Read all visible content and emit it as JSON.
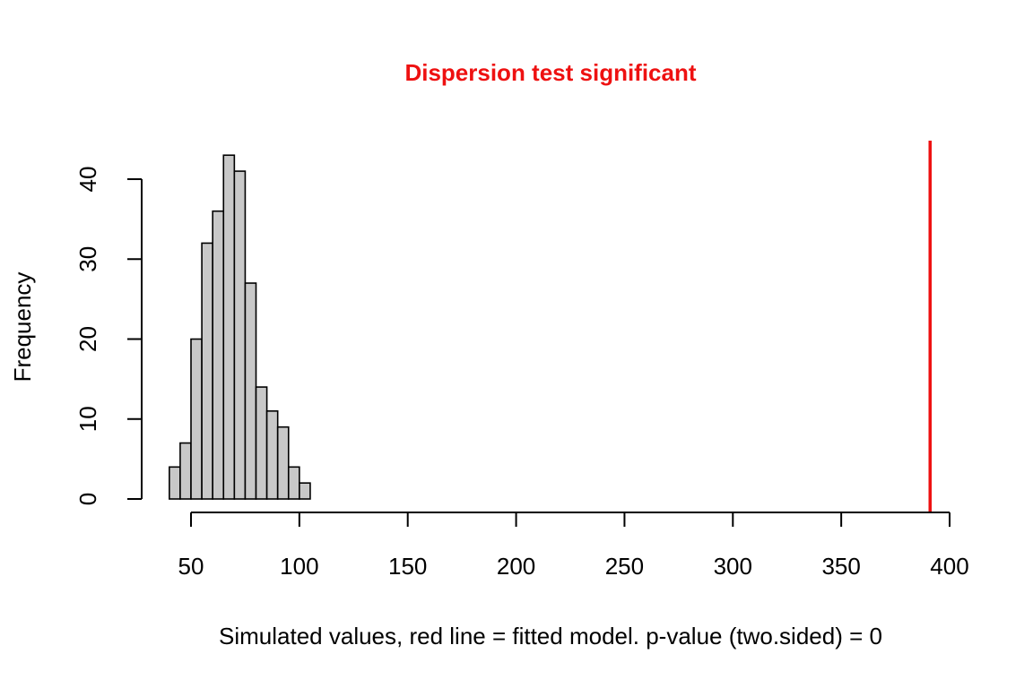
{
  "chart_data": {
    "type": "bar",
    "title": "Dispersion test significant",
    "xlabel": "Simulated values, red line = fitted model. p-value (two.sided) = 0",
    "ylabel": "Frequency",
    "xlim": [
      40,
      400
    ],
    "ylim": [
      0,
      43
    ],
    "grid": false,
    "bin_width": 5,
    "bins": [
      {
        "x0": 40,
        "x1": 45,
        "count": 4
      },
      {
        "x0": 45,
        "x1": 50,
        "count": 7
      },
      {
        "x0": 50,
        "x1": 55,
        "count": 20
      },
      {
        "x0": 55,
        "x1": 60,
        "count": 32
      },
      {
        "x0": 60,
        "x1": 65,
        "count": 36
      },
      {
        "x0": 65,
        "x1": 70,
        "count": 43
      },
      {
        "x0": 70,
        "x1": 75,
        "count": 41
      },
      {
        "x0": 75,
        "x1": 80,
        "count": 27
      },
      {
        "x0": 80,
        "x1": 85,
        "count": 14
      },
      {
        "x0": 85,
        "x1": 90,
        "count": 11
      },
      {
        "x0": 90,
        "x1": 95,
        "count": 9
      },
      {
        "x0": 95,
        "x1": 100,
        "count": 4
      },
      {
        "x0": 100,
        "x1": 105,
        "count": 2
      }
    ],
    "x_ticks": [
      50,
      100,
      150,
      200,
      250,
      300,
      350,
      400
    ],
    "y_ticks": [
      0,
      10,
      20,
      30,
      40
    ],
    "reference_line": {
      "x": 391
    },
    "colors": {
      "bar_fill": "#c8c8c8",
      "bar_stroke": "#000000",
      "reference_line": "#ee1111",
      "title": "#ee1111"
    }
  }
}
